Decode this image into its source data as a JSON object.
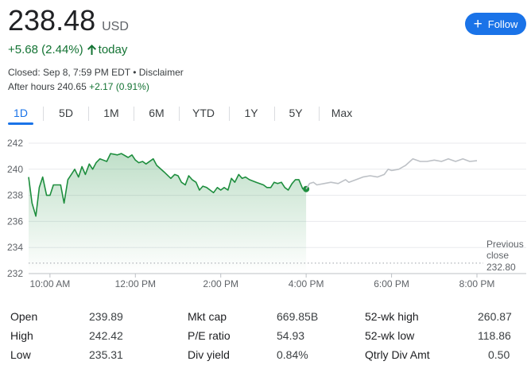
{
  "quote": {
    "price": "238.48",
    "currency": "USD",
    "change": "+5.68 (2.44%)",
    "change_period": "today",
    "closed_text": "Closed: Sep 8, 7:59 PM EDT",
    "separator": "•",
    "disclaimer": "Disclaimer",
    "after_hours_label": "After hours",
    "after_hours_price": "240.65",
    "after_hours_change": "+2.17 (0.91%)",
    "positive_color": "#137333"
  },
  "follow_button": {
    "label": "Follow",
    "icon": "plus-icon",
    "color": "#1a73e8"
  },
  "tabs": [
    {
      "label": "1D",
      "active": true
    },
    {
      "label": "5D"
    },
    {
      "label": "1M"
    },
    {
      "label": "6M"
    },
    {
      "label": "YTD"
    },
    {
      "label": "1Y"
    },
    {
      "label": "5Y"
    },
    {
      "label": "Max"
    }
  ],
  "chart_data": {
    "type": "line",
    "y_ticks": [
      "242",
      "240",
      "238",
      "236",
      "234",
      "232"
    ],
    "ylim": [
      232,
      242
    ],
    "x_ticks": [
      "10:00 AM",
      "12:00 PM",
      "2:00 PM",
      "4:00 PM",
      "6:00 PM",
      "8:00 PM"
    ],
    "x_tick_hours": [
      10,
      12,
      14,
      16,
      18,
      20
    ],
    "xlim": [
      9.5,
      20.0
    ],
    "previous_close": {
      "label_line1": "Previous",
      "label_line2": "close",
      "value": "232.80",
      "y": 232.8
    },
    "series": [
      {
        "session": "regular",
        "color": "#1e8e3e",
        "points": [
          [
            9.5,
            239.4
          ],
          [
            9.58,
            237.4
          ],
          [
            9.67,
            236.4
          ],
          [
            9.75,
            238.6
          ],
          [
            9.83,
            239.4
          ],
          [
            9.92,
            238.0
          ],
          [
            10.0,
            238.0
          ],
          [
            10.08,
            238.8
          ],
          [
            10.25,
            238.8
          ],
          [
            10.33,
            237.4
          ],
          [
            10.42,
            239.2
          ],
          [
            10.5,
            239.6
          ],
          [
            10.58,
            240.0
          ],
          [
            10.67,
            239.4
          ],
          [
            10.75,
            240.2
          ],
          [
            10.83,
            239.6
          ],
          [
            10.92,
            240.4
          ],
          [
            11.0,
            240.0
          ],
          [
            11.08,
            240.5
          ],
          [
            11.17,
            240.8
          ],
          [
            11.33,
            240.6
          ],
          [
            11.42,
            241.2
          ],
          [
            11.58,
            241.1
          ],
          [
            11.67,
            241.2
          ],
          [
            11.83,
            240.9
          ],
          [
            11.92,
            241.1
          ],
          [
            12.0,
            240.7
          ],
          [
            12.08,
            240.5
          ],
          [
            12.17,
            240.6
          ],
          [
            12.25,
            240.4
          ],
          [
            12.42,
            240.8
          ],
          [
            12.5,
            240.3
          ],
          [
            12.67,
            239.8
          ],
          [
            12.83,
            239.3
          ],
          [
            12.92,
            239.6
          ],
          [
            13.0,
            239.5
          ],
          [
            13.08,
            239.0
          ],
          [
            13.17,
            238.8
          ],
          [
            13.25,
            239.5
          ],
          [
            13.33,
            239.2
          ],
          [
            13.42,
            239.0
          ],
          [
            13.5,
            238.4
          ],
          [
            13.58,
            238.7
          ],
          [
            13.67,
            238.6
          ],
          [
            13.75,
            238.4
          ],
          [
            13.83,
            238.2
          ],
          [
            13.92,
            238.6
          ],
          [
            14.0,
            238.4
          ],
          [
            14.08,
            238.6
          ],
          [
            14.17,
            238.4
          ],
          [
            14.25,
            239.3
          ],
          [
            14.33,
            239.0
          ],
          [
            14.42,
            239.6
          ],
          [
            14.5,
            239.3
          ],
          [
            14.58,
            239.4
          ],
          [
            14.67,
            239.2
          ],
          [
            14.83,
            239.0
          ],
          [
            15.0,
            238.8
          ],
          [
            15.08,
            238.6
          ],
          [
            15.17,
            238.6
          ],
          [
            15.25,
            239.0
          ],
          [
            15.33,
            238.9
          ],
          [
            15.42,
            239.0
          ],
          [
            15.5,
            238.6
          ],
          [
            15.58,
            238.4
          ],
          [
            15.67,
            238.9
          ],
          [
            15.75,
            239.2
          ],
          [
            15.83,
            239.2
          ],
          [
            15.92,
            238.5
          ],
          [
            16.0,
            238.48
          ]
        ]
      },
      {
        "session": "after_hours",
        "color": "#bdc1c6",
        "points": [
          [
            16.0,
            238.48
          ],
          [
            16.08,
            238.9
          ],
          [
            16.17,
            239.0
          ],
          [
            16.25,
            238.8
          ],
          [
            16.42,
            238.9
          ],
          [
            16.58,
            239.0
          ],
          [
            16.75,
            238.9
          ],
          [
            16.92,
            239.2
          ],
          [
            17.0,
            239.0
          ],
          [
            17.17,
            239.2
          ],
          [
            17.33,
            239.4
          ],
          [
            17.5,
            239.5
          ],
          [
            17.67,
            239.4
          ],
          [
            17.83,
            239.6
          ],
          [
            17.92,
            240.0
          ],
          [
            18.0,
            239.9
          ],
          [
            18.17,
            240.0
          ],
          [
            18.33,
            240.3
          ],
          [
            18.5,
            240.8
          ],
          [
            18.58,
            240.7
          ],
          [
            18.67,
            240.6
          ],
          [
            18.83,
            240.6
          ],
          [
            19.0,
            240.7
          ],
          [
            19.17,
            240.6
          ],
          [
            19.33,
            240.8
          ],
          [
            19.5,
            240.6
          ],
          [
            19.67,
            240.8
          ],
          [
            19.83,
            240.6
          ],
          [
            20.0,
            240.65
          ]
        ]
      }
    ],
    "grid": true
  },
  "stats": [
    {
      "label": "Open",
      "value": "239.89"
    },
    {
      "label": "High",
      "value": "242.42"
    },
    {
      "label": "Low",
      "value": "235.31"
    },
    {
      "label": "Mkt cap",
      "value": "669.85B"
    },
    {
      "label": "P/E ratio",
      "value": "54.93"
    },
    {
      "label": "Div yield",
      "value": "0.84%"
    },
    {
      "label": "52-wk high",
      "value": "260.87"
    },
    {
      "label": "52-wk low",
      "value": "118.86"
    },
    {
      "label": "Qtrly Div Amt",
      "value": "0.50"
    }
  ]
}
